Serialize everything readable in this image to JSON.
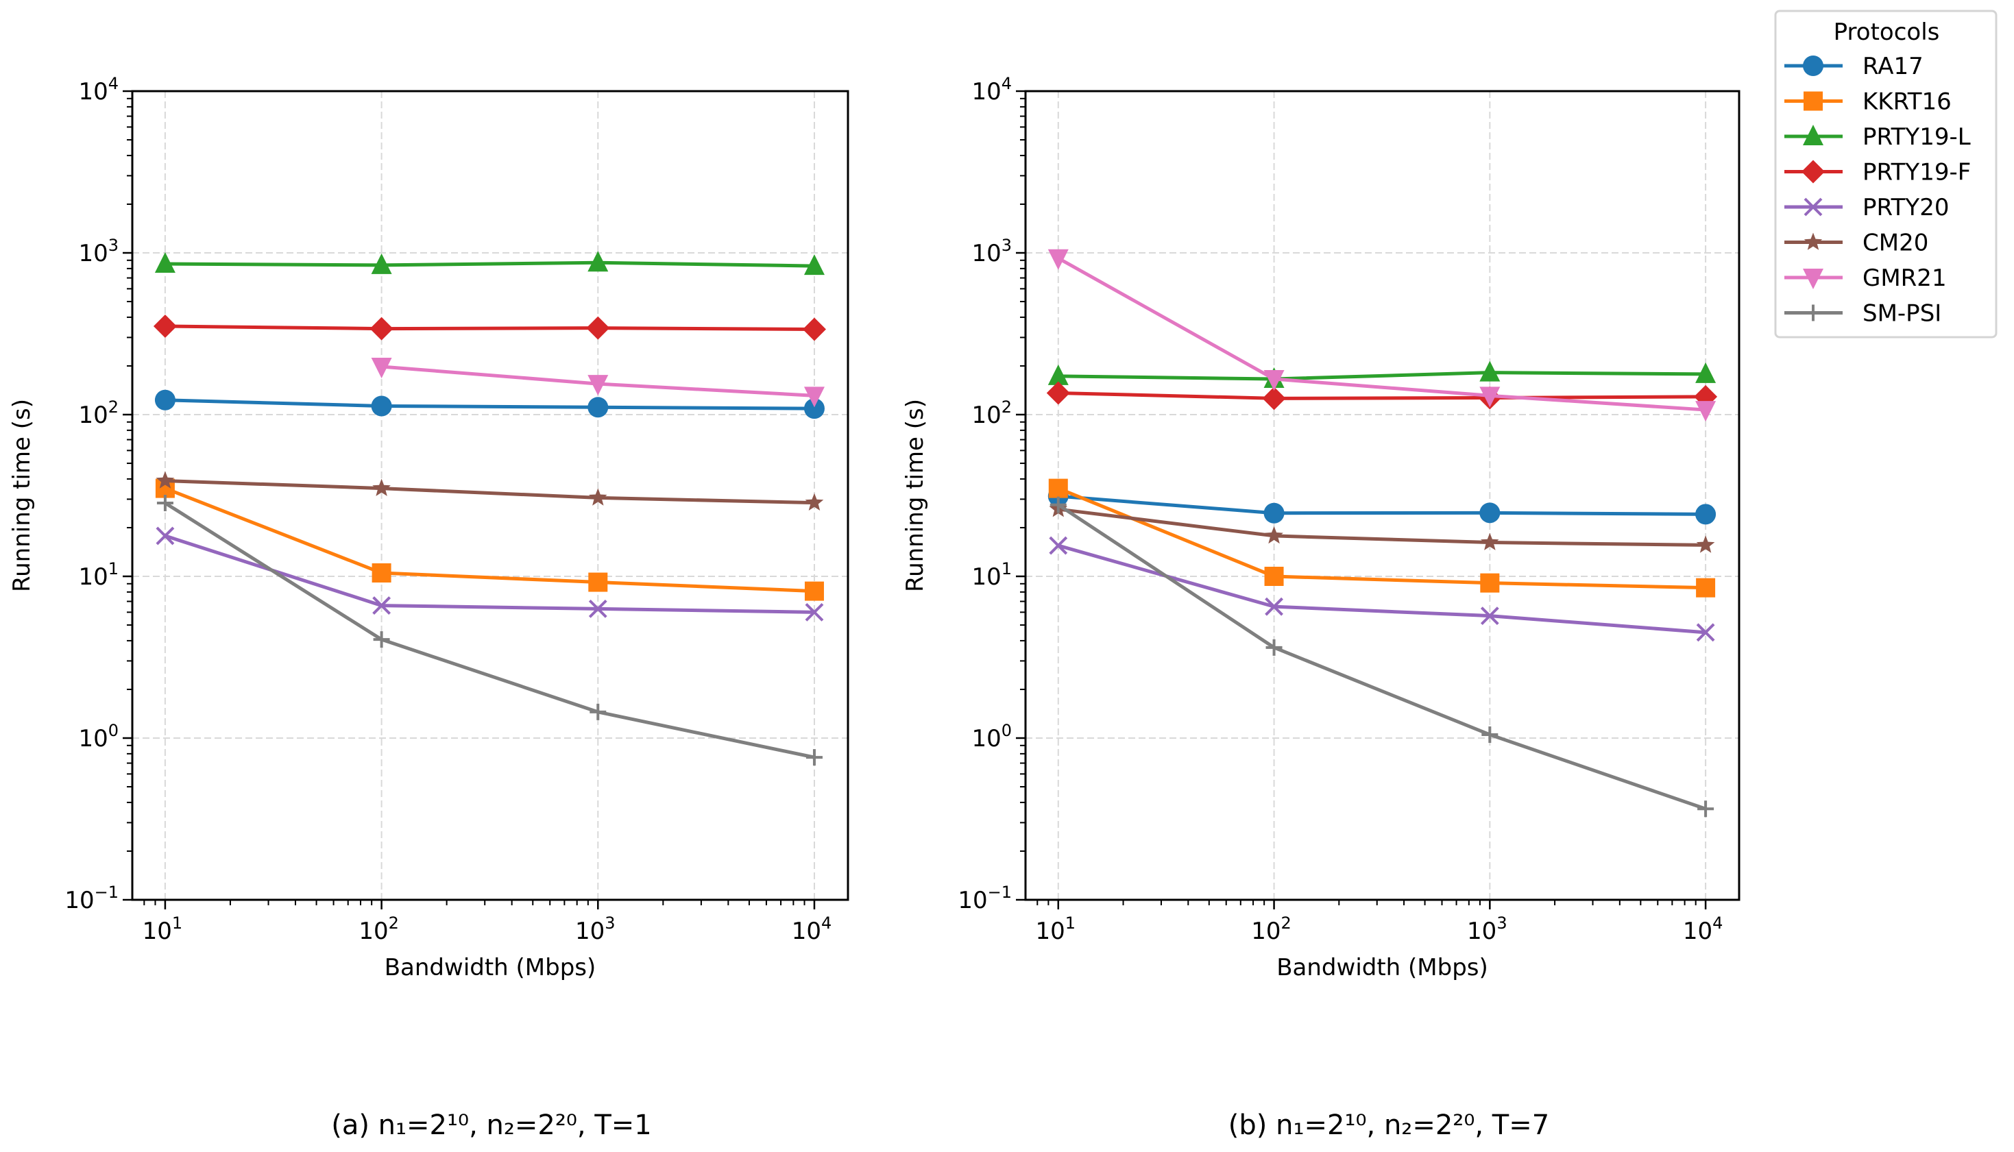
{
  "legend": {
    "title": "Protocols",
    "entries": [
      {
        "name": "RA17",
        "color": "#1f77b4",
        "marker": "circle"
      },
      {
        "name": "KKRT16",
        "color": "#ff7f0e",
        "marker": "square"
      },
      {
        "name": "PRTY19-L",
        "color": "#2ca02c",
        "marker": "triangle-up"
      },
      {
        "name": "PRTY19-F",
        "color": "#d62728",
        "marker": "diamond"
      },
      {
        "name": "PRTY20",
        "color": "#9467bd",
        "marker": "x"
      },
      {
        "name": "CM20",
        "color": "#8c564b",
        "marker": "star"
      },
      {
        "name": "GMR21",
        "color": "#e377c2",
        "marker": "triangle-down"
      },
      {
        "name": "SM-PSI",
        "color": "#7f7f7f",
        "marker": "plus"
      }
    ]
  },
  "chart_data": [
    {
      "type": "line",
      "title": "",
      "caption": "(a) n₁=2¹⁰, n₂=2²⁰, T=1",
      "xlabel": "Bandwidth (Mbps)",
      "ylabel": "Running time (s)",
      "xscale": "log",
      "yscale": "log",
      "x": [
        10,
        100,
        1000,
        10000
      ],
      "xlim": [
        7.05,
        14300
      ],
      "ylim": [
        0.1,
        10000
      ],
      "x_tick_exponents": [
        1,
        2,
        3,
        4
      ],
      "y_tick_exponents": [
        -1,
        0,
        1,
        2,
        3,
        4
      ],
      "grid": true,
      "series": [
        {
          "name": "RA17",
          "values": [
            123,
            113,
            111,
            109
          ]
        },
        {
          "name": "KKRT16",
          "values": [
            35,
            10.5,
            9.2,
            8.1
          ]
        },
        {
          "name": "PRTY19-L",
          "values": [
            855,
            840,
            870,
            830
          ]
        },
        {
          "name": "PRTY19-F",
          "values": [
            352,
            340,
            343,
            337
          ]
        },
        {
          "name": "PRTY20",
          "values": [
            17.8,
            6.6,
            6.3,
            6.0
          ]
        },
        {
          "name": "CM20",
          "values": [
            39,
            35,
            30.6,
            28.5
          ]
        },
        {
          "name": "GMR21",
          "values": [
            null,
            198,
            155,
            131
          ]
        },
        {
          "name": "SM-PSI",
          "values": [
            28.4,
            4.07,
            1.45,
            0.76
          ]
        }
      ]
    },
    {
      "type": "line",
      "title": "",
      "caption": "(b) n₁=2¹⁰, n₂=2²⁰, T=7",
      "xlabel": "Bandwidth (Mbps)",
      "ylabel": "Running time (s)",
      "xscale": "log",
      "yscale": "log",
      "x": [
        10,
        100,
        1000,
        10000
      ],
      "xlim": [
        7.05,
        14300
      ],
      "ylim": [
        0.1,
        10000
      ],
      "x_tick_exponents": [
        1,
        2,
        3,
        4
      ],
      "y_tick_exponents": [
        -1,
        0,
        1,
        2,
        3,
        4
      ],
      "grid": true,
      "series": [
        {
          "name": "RA17",
          "values": [
            31.3,
            24.6,
            24.7,
            24.2
          ]
        },
        {
          "name": "KKRT16",
          "values": [
            35,
            10,
            9.1,
            8.5
          ]
        },
        {
          "name": "PRTY19-L",
          "values": [
            173,
            166,
            182,
            178
          ]
        },
        {
          "name": "PRTY19-F",
          "values": [
            136,
            126,
            127,
            129
          ]
        },
        {
          "name": "PRTY20",
          "values": [
            15.5,
            6.5,
            5.7,
            4.5
          ]
        },
        {
          "name": "CM20",
          "values": [
            26,
            17.8,
            16.2,
            15.6
          ]
        },
        {
          "name": "GMR21",
          "values": [
            927,
            166,
            131,
            107
          ]
        },
        {
          "name": "SM-PSI",
          "values": [
            27.7,
            3.63,
            1.05,
            0.365
          ]
        }
      ]
    }
  ]
}
